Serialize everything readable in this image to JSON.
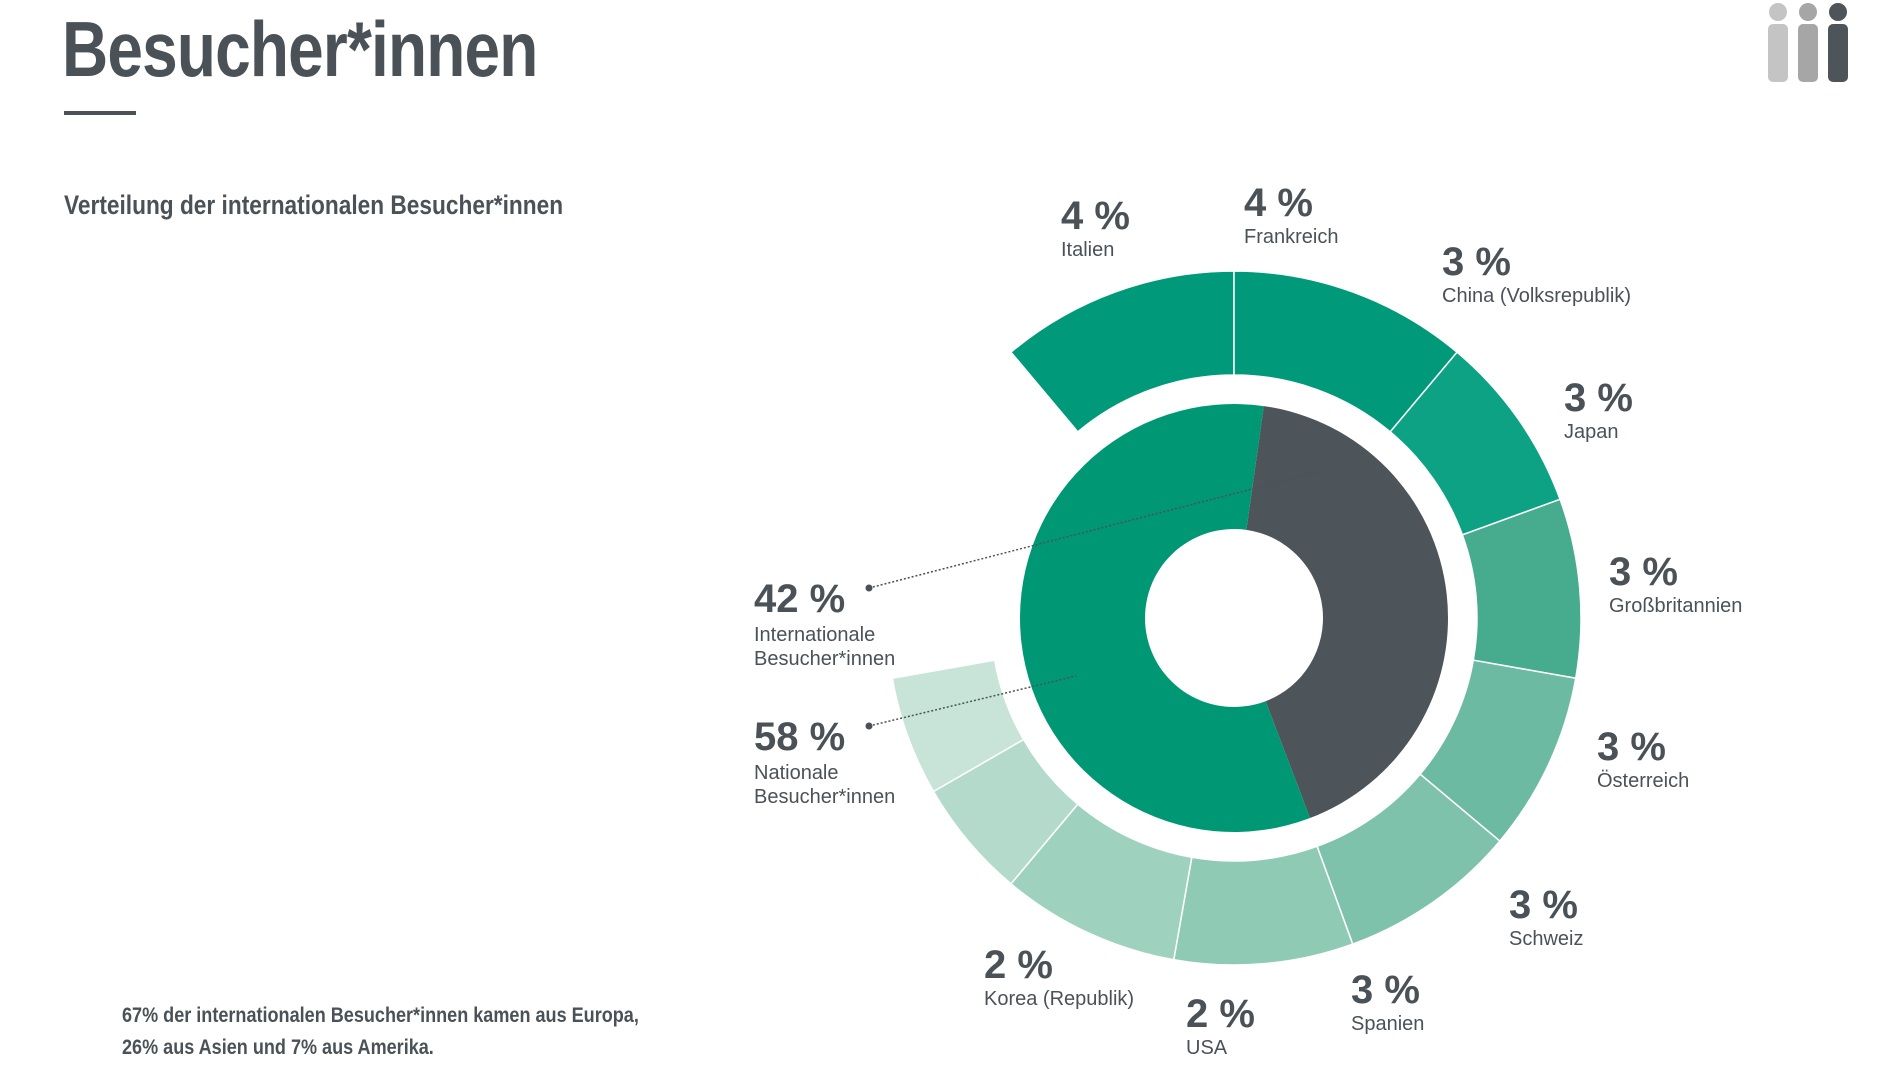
{
  "page": {
    "title": "Besucher*innen",
    "chart_title": "Verteilung der internationalen Besucher*innen",
    "footnote_lines": [
      "67% der internationalen Besucher*innen kamen aus Europa,",
      "26% aus Asien und 7% aus Amerika."
    ],
    "icon": "people-icon"
  },
  "chart_data": [
    {
      "type": "pie",
      "variant": "donut",
      "slices": [
        {
          "label_lines": [
            "Internationale",
            "Besucher*innen"
          ],
          "value": 42,
          "value_label": "42 %",
          "color": "#4d545a"
        },
        {
          "label_lines": [
            "Nationale",
            "Besucher*innen"
          ],
          "value": 58,
          "value_label": "58 %",
          "color": "#009874"
        }
      ]
    },
    {
      "type": "pie",
      "variant": "partial-ring",
      "slices": [
        {
          "label": "Italien",
          "value": 4,
          "value_label": "4 %",
          "color": "#00997a"
        },
        {
          "label": "Frankreich",
          "value": 4,
          "value_label": "4 %",
          "color": "#00997a"
        },
        {
          "label": "China (Volksrepublik)",
          "value": 3,
          "value_label": "3 %",
          "color": "#0da283"
        },
        {
          "label": "Japan",
          "value": 3,
          "value_label": "3 %",
          "color": "#47ab8e"
        },
        {
          "label": "Großbritannien",
          "value": 3,
          "value_label": "3 %",
          "color": "#6cbaa2"
        },
        {
          "label": "Österreich",
          "value": 3,
          "value_label": "3 %",
          "color": "#7fc2ab"
        },
        {
          "label": "Schweiz",
          "value": 3,
          "value_label": "3 %",
          "color": "#8ecab4"
        },
        {
          "label": "Spanien",
          "value": 3,
          "value_label": "3 %",
          "color": "#9fd1bf"
        },
        {
          "label": "USA",
          "value": 2,
          "value_label": "2 %",
          "color": "#b3dacb"
        },
        {
          "label": "Korea (Republik)",
          "value": 2,
          "value_label": "2 %",
          "color": "#c8e4d9"
        }
      ]
    }
  ]
}
